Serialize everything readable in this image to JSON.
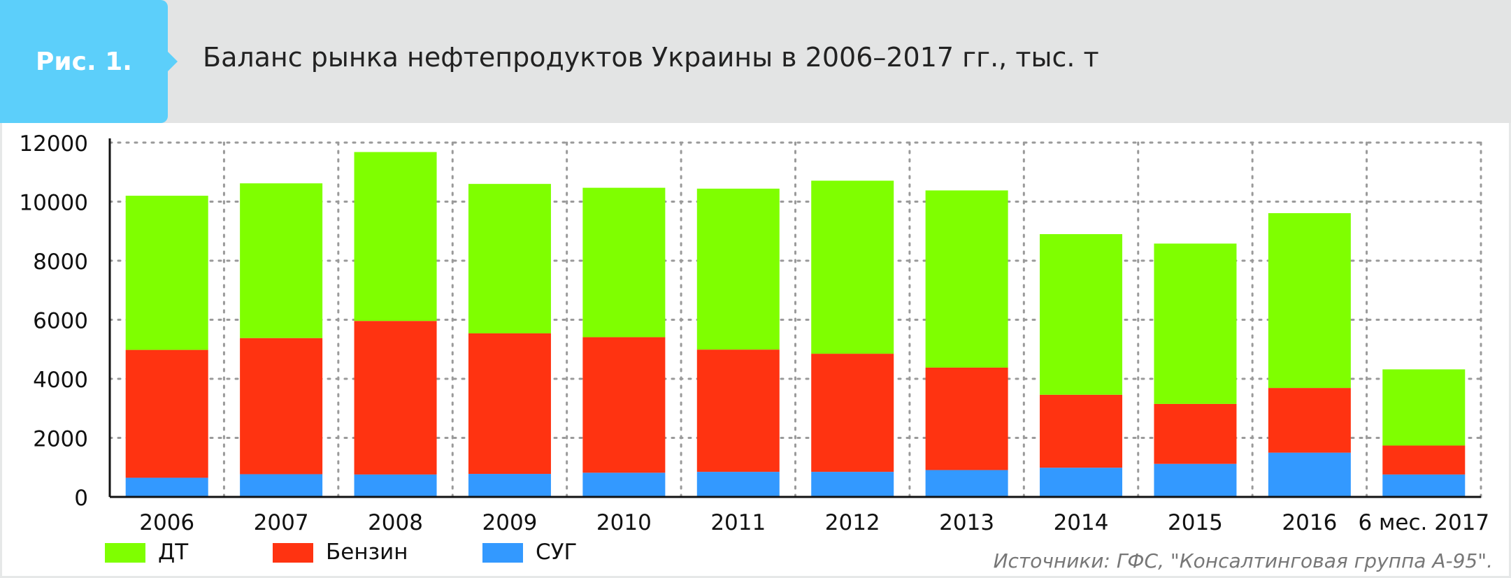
{
  "header": {
    "figure_label": "Рис. 1.",
    "title": "Баланс рынка нефтепродуктов Украины в 2006–2017 гг., тыс. т"
  },
  "legend": [
    {
      "label": "ДТ",
      "color": "#7fff00"
    },
    {
      "label": "Бензин",
      "color": "#ff3311"
    },
    {
      "label": "СУГ",
      "color": "#3399ff"
    }
  ],
  "source": "Источники: ГФС, \"Консалтинговая группа А-95\".",
  "chart_data": {
    "type": "bar",
    "stacked": true,
    "categories": [
      "2006",
      "2007",
      "2008",
      "2009",
      "2010",
      "2011",
      "2012",
      "2013",
      "2014",
      "2015",
      "2016",
      "6 мес. 2017"
    ],
    "series": [
      {
        "name": "СУГ",
        "color": "#3399ff",
        "values": [
          650,
          770,
          760,
          780,
          820,
          850,
          850,
          910,
          990,
          1120,
          1500,
          760
        ]
      },
      {
        "name": "Бензин",
        "color": "#ff3311",
        "values": [
          4330,
          4610,
          5200,
          4760,
          4590,
          4140,
          4000,
          3470,
          2470,
          2030,
          2190,
          980
        ]
      },
      {
        "name": "ДТ",
        "color": "#7fff00",
        "values": [
          5220,
          5240,
          5720,
          5060,
          5060,
          5450,
          5860,
          6000,
          5440,
          5430,
          5920,
          2580
        ]
      }
    ],
    "ylim": [
      0,
      12000
    ],
    "yticks": [
      0,
      2000,
      4000,
      6000,
      8000,
      10000,
      12000
    ],
    "xlabel": "",
    "ylabel": "",
    "grid": true,
    "legend_position": "bottom-left"
  }
}
